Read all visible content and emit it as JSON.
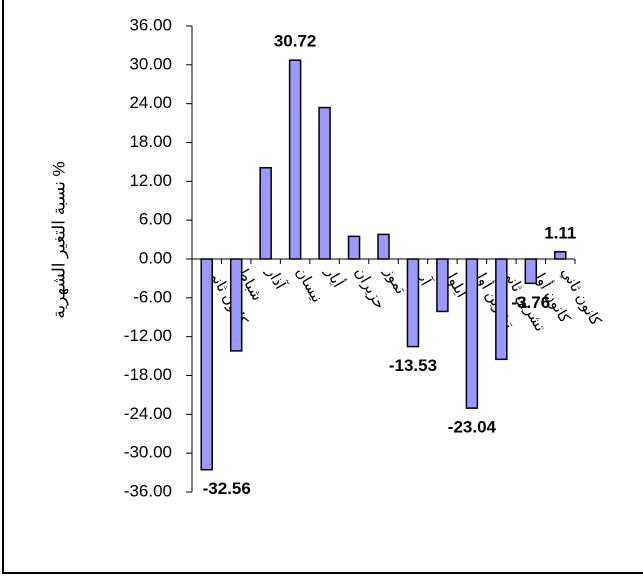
{
  "chart_data": {
    "type": "bar",
    "y_label": "نسبة التغير الشهرية %",
    "categories": [
      "كانون ثاني",
      "شباط",
      "آذار",
      "نيسان",
      "أيار",
      "حزيران",
      "تموز",
      "آب",
      "أيلول",
      "تشرين أول",
      "تشرين ثاني",
      "كانون أول",
      "كانون ثاني"
    ],
    "values": [
      -32.56,
      -14.2,
      14.1,
      30.72,
      23.4,
      3.5,
      3.8,
      -13.53,
      -8.1,
      -23.04,
      -15.5,
      -3.76,
      1.11
    ],
    "value_labels": [
      "-32.56",
      null,
      null,
      "30.72",
      null,
      null,
      null,
      "-13.53",
      null,
      "-23.04",
      null,
      "-3.76",
      "1.11"
    ],
    "color": "#9999ff",
    "ylim": [
      -36,
      36
    ],
    "yticks": [
      {
        "value": -36,
        "label": "-36.00"
      },
      {
        "value": -30,
        "label": "-30.00"
      },
      {
        "value": -24,
        "label": "-24.00"
      },
      {
        "value": -18,
        "label": "-18.00"
      },
      {
        "value": -12,
        "label": "-12.00"
      },
      {
        "value": -6,
        "label": "-6.00"
      },
      {
        "value": 0,
        "label": "0.00"
      },
      {
        "value": 6,
        "label": "6.00"
      },
      {
        "value": 12,
        "label": "12.00"
      },
      {
        "value": 18,
        "label": "18.00"
      },
      {
        "value": 24,
        "label": "24.00"
      },
      {
        "value": 30,
        "label": "30.00"
      },
      {
        "value": 36,
        "label": "36.00"
      }
    ],
    "grid": false
  }
}
